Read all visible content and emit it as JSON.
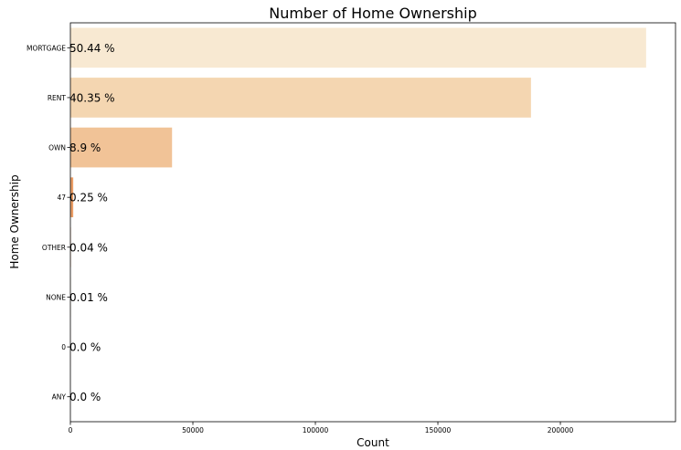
{
  "chart_data": {
    "type": "bar",
    "orientation": "horizontal",
    "title": "Number of Home Ownership",
    "xlabel": "Count",
    "ylabel": "Home Ownership",
    "categories": [
      "MORTGAGE",
      "RENT",
      "OWN",
      "47",
      "OTHER",
      "NONE",
      "0",
      "ANY"
    ],
    "values": [
      235000,
      188000,
      41500,
      1165,
      186,
      47,
      5,
      3
    ],
    "data_labels": [
      "50.44 %",
      "40.35 %",
      "8.9 %",
      "0.25 %",
      "0.04 %",
      "0.01 %",
      "0.0 %",
      "0.0 %"
    ],
    "xlim": [
      0,
      247000
    ],
    "xticks": [
      0,
      50000,
      100000,
      150000,
      200000
    ],
    "xtick_labels": [
      "0",
      "50000",
      "100000",
      "150000",
      "200000"
    ],
    "colors": [
      "#f8e9d2",
      "#f4d6b1",
      "#f1c397",
      "#eb9e66",
      "#e38a52",
      "#dd7a45",
      "#d66c3d",
      "#d06536"
    ],
    "grid": false,
    "legend": "none"
  }
}
